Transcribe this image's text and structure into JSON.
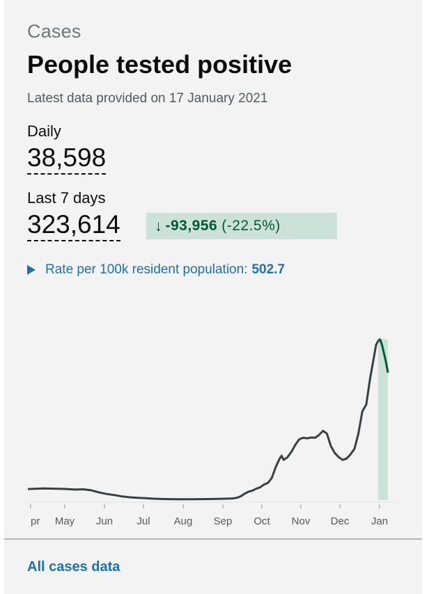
{
  "card": {
    "caption": "Cases",
    "title": "People tested positive",
    "updated": "Latest data provided on 17 January 2021"
  },
  "daily": {
    "label": "Daily",
    "value": "38,598"
  },
  "last7": {
    "label": "Last 7 days",
    "value": "323,614",
    "change_value": "-93,956",
    "change_percent": "(-22.5%)",
    "arrow_icon": "arrow-down-icon"
  },
  "rate": {
    "label": "Rate per 100k resident population:",
    "value": "502.7",
    "toggle_icon": "triangle-right-icon"
  },
  "footer": {
    "link": "All cases data"
  },
  "colors": {
    "line": "#383f43",
    "recent_line": "#005a30",
    "recent_fill": "#cce2d8",
    "link": "#1d70b8"
  },
  "chart_data": {
    "type": "line",
    "x_ticks": [
      "pr",
      "May",
      "Jun",
      "Jul",
      "Aug",
      "Sep",
      "Oct",
      "Nov",
      "Dec",
      "Jan"
    ],
    "ylim": [
      0,
      60000
    ],
    "grid": false,
    "series": [
      {
        "points": [
          [
            0,
            4000
          ],
          [
            4,
            4200
          ],
          [
            8,
            4100
          ],
          [
            10,
            4000
          ],
          [
            12,
            3800
          ],
          [
            14,
            3900
          ],
          [
            16,
            3600
          ],
          [
            18,
            2800
          ],
          [
            20,
            2200
          ],
          [
            22,
            1800
          ],
          [
            24,
            1300
          ],
          [
            26,
            1000
          ],
          [
            28,
            800
          ],
          [
            30,
            700
          ],
          [
            32,
            500
          ],
          [
            34,
            400
          ],
          [
            36,
            350
          ],
          [
            38,
            300
          ],
          [
            40,
            300
          ],
          [
            42,
            320
          ],
          [
            44,
            350
          ],
          [
            46,
            380
          ],
          [
            48,
            420
          ],
          [
            50,
            500
          ],
          [
            52,
            600
          ],
          [
            53,
            800
          ],
          [
            54,
            1300
          ],
          [
            55,
            2200
          ],
          [
            56,
            3000
          ],
          [
            57,
            3400
          ],
          [
            58,
            4100
          ],
          [
            59,
            4600
          ],
          [
            60,
            5600
          ],
          [
            61,
            6200
          ],
          [
            62,
            8000
          ],
          [
            63,
            12000
          ],
          [
            64,
            15000
          ],
          [
            64.5,
            16000
          ],
          [
            65,
            14500
          ],
          [
            66,
            15500
          ],
          [
            67,
            17500
          ],
          [
            68,
            20000
          ],
          [
            69,
            22000
          ],
          [
            70,
            22500
          ],
          [
            71,
            22300
          ],
          [
            72,
            22600
          ],
          [
            73,
            22500
          ],
          [
            74,
            23500
          ],
          [
            75,
            25000
          ],
          [
            76,
            24000
          ],
          [
            77,
            19500
          ],
          [
            78,
            17000
          ],
          [
            79,
            15500
          ],
          [
            80,
            14500
          ],
          [
            81,
            15000
          ],
          [
            82,
            16500
          ],
          [
            83,
            18500
          ],
          [
            84,
            24000
          ],
          [
            85,
            32000
          ],
          [
            86,
            34500
          ],
          [
            87,
            44000
          ],
          [
            88,
            52000
          ],
          [
            88.5,
            56000
          ],
          [
            89,
            57500
          ],
          [
            89.5,
            58000
          ],
          [
            90,
            56000
          ],
          [
            90.5,
            53000
          ],
          [
            91,
            50000
          ],
          [
            91.5,
            46000
          ]
        ]
      }
    ],
    "recent_window": [
      89,
      91.5
    ]
  }
}
